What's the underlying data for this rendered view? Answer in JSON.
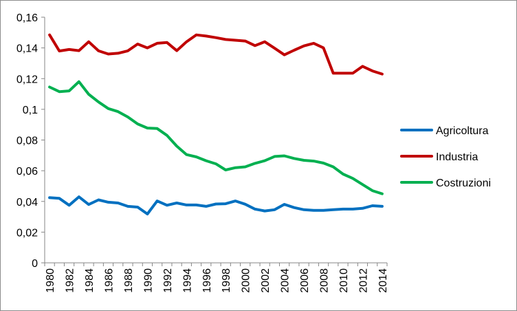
{
  "chart_data": {
    "type": "line",
    "title": "",
    "xlabel": "",
    "ylabel": "",
    "x": [
      1980,
      1981,
      1982,
      1983,
      1984,
      1985,
      1986,
      1987,
      1988,
      1989,
      1990,
      1991,
      1992,
      1993,
      1994,
      1995,
      1996,
      1997,
      1998,
      1999,
      2000,
      2001,
      2002,
      2003,
      2004,
      2005,
      2006,
      2007,
      2008,
      2009,
      2010,
      2011,
      2012,
      2013,
      2014
    ],
    "x_tick_labels": [
      "1980",
      "1982",
      "1984",
      "1986",
      "1988",
      "1990",
      "1992",
      "1994",
      "1996",
      "1998",
      "2000",
      "2002",
      "2004",
      "2006",
      "2008",
      "2010",
      "2012",
      "2014"
    ],
    "y_tick_labels": [
      "0",
      "0,02",
      "0,04",
      "0,06",
      "0,08",
      "0,1",
      "0,12",
      "0,14",
      "0,16"
    ],
    "ylim": [
      0,
      0.16
    ],
    "grid": false,
    "legend_position": "right",
    "series": [
      {
        "name": "Agricoltura",
        "color": "#0070c0",
        "values": [
          0.0425,
          0.042,
          0.0375,
          0.043,
          0.038,
          0.041,
          0.0395,
          0.039,
          0.0368,
          0.0363,
          0.0318,
          0.0403,
          0.0375,
          0.039,
          0.0377,
          0.0377,
          0.0368,
          0.0383,
          0.0385,
          0.0403,
          0.0382,
          0.035,
          0.0338,
          0.0346,
          0.0381,
          0.036,
          0.0346,
          0.0342,
          0.0342,
          0.0346,
          0.035,
          0.035,
          0.0355,
          0.0372,
          0.0368
        ]
      },
      {
        "name": "Industria",
        "color": "#c00000",
        "values": [
          0.1485,
          0.138,
          0.139,
          0.1382,
          0.144,
          0.1381,
          0.136,
          0.1365,
          0.1381,
          0.1425,
          0.14,
          0.143,
          0.1435,
          0.1382,
          0.144,
          0.1485,
          0.1477,
          0.1467,
          0.1455,
          0.145,
          0.1445,
          0.1415,
          0.144,
          0.1398,
          0.1355,
          0.1385,
          0.1413,
          0.143,
          0.14,
          0.1235,
          0.1235,
          0.1235,
          0.128,
          0.125,
          0.123
        ]
      },
      {
        "name": "Costruzioni",
        "color": "#00b050",
        "values": [
          0.1145,
          0.1115,
          0.112,
          0.118,
          0.1098,
          0.1048,
          0.1005,
          0.0985,
          0.095,
          0.0905,
          0.0878,
          0.0875,
          0.083,
          0.076,
          0.0705,
          0.069,
          0.0665,
          0.0645,
          0.0605,
          0.062,
          0.0625,
          0.0648,
          0.0665,
          0.0693,
          0.0697,
          0.068,
          0.0668,
          0.0663,
          0.065,
          0.0625,
          0.0578,
          0.055,
          0.051,
          0.047,
          0.045
        ]
      }
    ]
  }
}
